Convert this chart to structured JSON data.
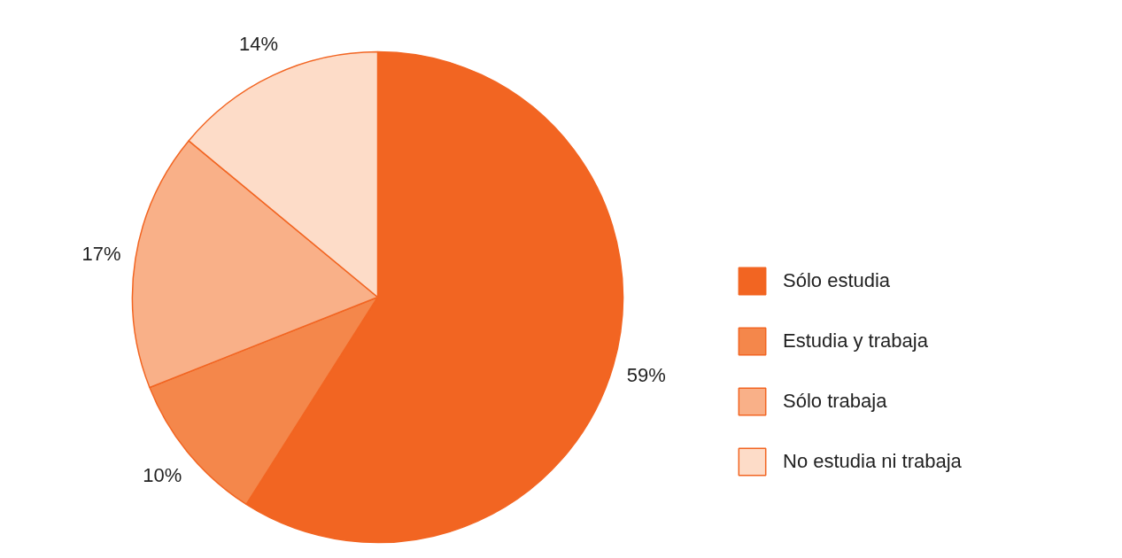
{
  "chart_data": {
    "type": "pie",
    "categories": [
      "Sólo estudia",
      "Estudia y trabaja",
      "Sólo trabaja",
      "No estudia ni trabaja"
    ],
    "values": [
      59,
      10,
      17,
      14
    ],
    "colors": [
      "#f26522",
      "#f4874b",
      "#f9b088",
      "#fddcc8"
    ],
    "value_labels": [
      "59%",
      "10%",
      "17%",
      "14%"
    ],
    "legend": "right"
  }
}
